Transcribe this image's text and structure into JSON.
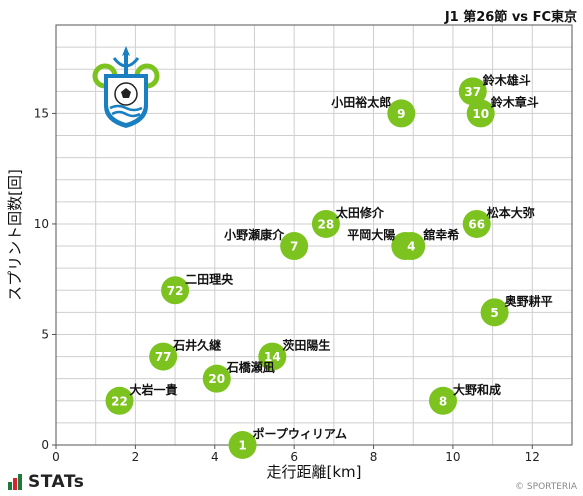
{
  "header": {
    "match_title": "J1 第26節 vs FC東京"
  },
  "footer": {
    "brand": "STATs",
    "copyright": "© SPORTERIA"
  },
  "colors": {
    "point": "#7cc31f",
    "point_text": "#ffffff",
    "grid": "#cfcfcf"
  },
  "logo": {
    "name": "club-crest-icon"
  },
  "chart_data": {
    "type": "scatter",
    "xlabel": "走行距離[km]",
    "ylabel": "スプリント回数[回]",
    "xlim": [
      0,
      13
    ],
    "ylim": [
      0,
      19
    ],
    "xticks": [
      0,
      2,
      4,
      6,
      8,
      10,
      12
    ],
    "yticks": [
      0,
      5,
      10,
      15
    ],
    "grid": true,
    "points": [
      {
        "number": "37",
        "name": "鈴木雄斗",
        "x": 10.5,
        "y": 16
      },
      {
        "number": "10",
        "name": "鈴木章斗",
        "x": 10.7,
        "y": 15
      },
      {
        "number": "9",
        "name": "小田裕太郎",
        "x": 8.7,
        "y": 15
      },
      {
        "number": "28",
        "name": "太田修介",
        "x": 6.8,
        "y": 10
      },
      {
        "number": "66",
        "name": "松本大弥",
        "x": 10.6,
        "y": 10
      },
      {
        "number": "7",
        "name": "小野瀬康介",
        "x": 6.0,
        "y": 9
      },
      {
        "number": "13",
        "name": "平岡大陽",
        "x": 8.8,
        "y": 9
      },
      {
        "number": "4",
        "name": "舘幸希",
        "x": 8.95,
        "y": 9
      },
      {
        "number": "72",
        "name": "二田理央",
        "x": 3.0,
        "y": 7
      },
      {
        "number": "5",
        "name": "奥野耕平",
        "x": 11.05,
        "y": 6
      },
      {
        "number": "77",
        "name": "石井久継",
        "x": 2.7,
        "y": 4
      },
      {
        "number": "14",
        "name": "茨田陽生",
        "x": 5.45,
        "y": 4
      },
      {
        "number": "20",
        "name": "石橋瀬凪",
        "x": 4.05,
        "y": 3
      },
      {
        "number": "22",
        "name": "大岩一貴",
        "x": 1.6,
        "y": 2
      },
      {
        "number": "8",
        "name": "大野和成",
        "x": 9.75,
        "y": 2
      },
      {
        "number": "1",
        "name": "ポープウィリアム",
        "x": 4.7,
        "y": 0
      }
    ]
  }
}
